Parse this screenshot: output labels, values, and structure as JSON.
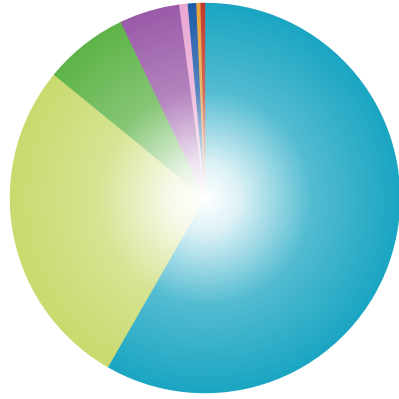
{
  "chart_data": {
    "type": "pie",
    "title": "",
    "start_angle_deg": 0,
    "direction": "clockwise",
    "slices": [
      {
        "value": 58.3,
        "color": "#1aa5c2"
      },
      {
        "value": 27.6,
        "color": "#c9da6e"
      },
      {
        "value": 7.0,
        "color": "#5db347"
      },
      {
        "value": 5.0,
        "color": "#9a5aa8"
      },
      {
        "value": 0.7,
        "color": "#e9a7d3"
      },
      {
        "value": 0.7,
        "color": "#1c5aa8"
      },
      {
        "value": 0.35,
        "color": "#e8a13a"
      },
      {
        "value": 0.35,
        "color": "#c0392b"
      }
    ],
    "shading": "radial-highlight-center"
  }
}
